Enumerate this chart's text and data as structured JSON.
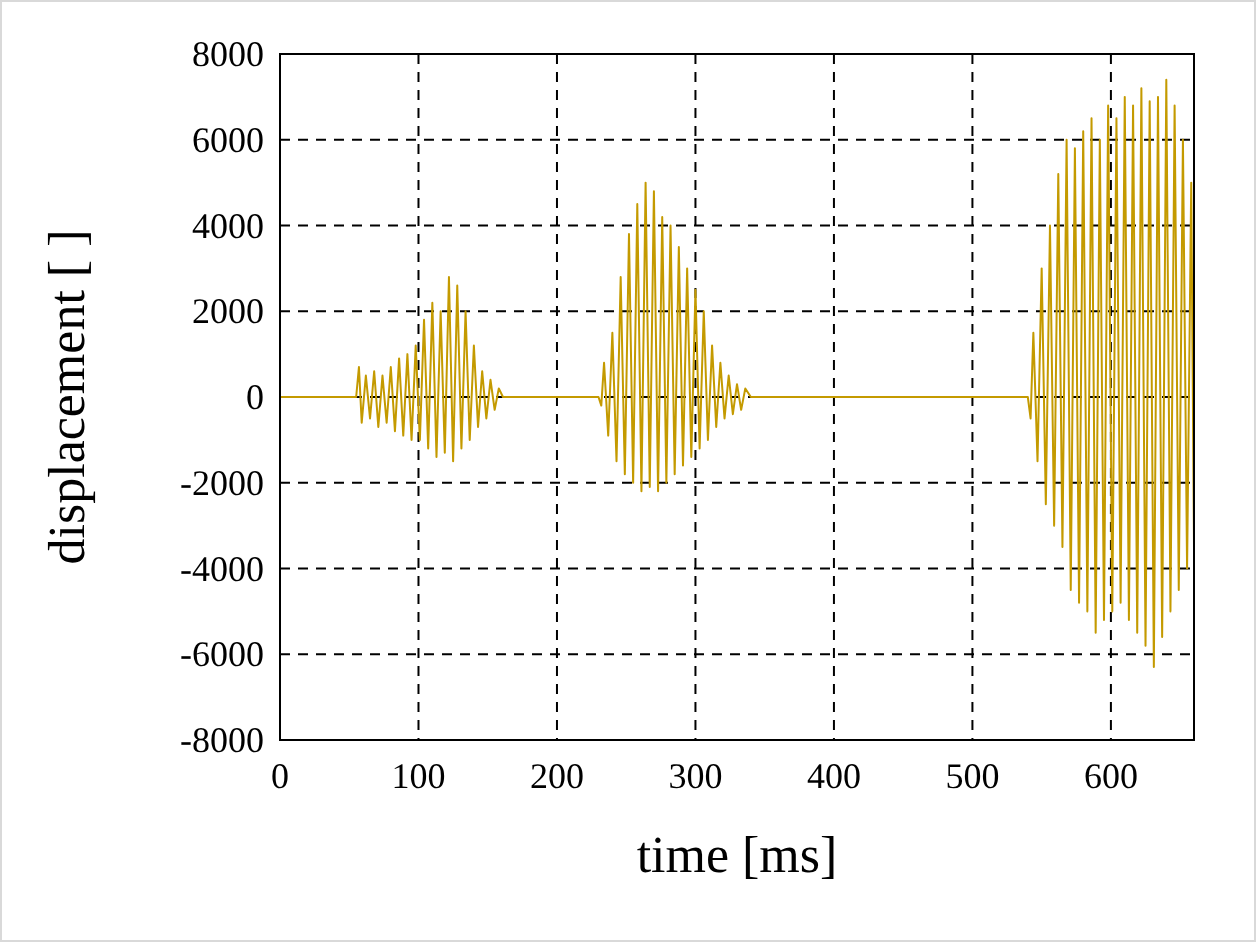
{
  "chart_data": {
    "type": "line",
    "xlabel": "time [ms]",
    "ylabel": "displacement [ ]",
    "xlim": [
      0,
      660
    ],
    "xticks": [
      0,
      100,
      200,
      300,
      400,
      500,
      600
    ],
    "ylim": [
      -8000,
      8000
    ],
    "yticks": [
      -8000,
      -6000,
      -4000,
      -2000,
      0,
      2000,
      4000,
      6000,
      8000
    ],
    "grid": true,
    "marker": "none",
    "line_style": "solid",
    "series": [
      {
        "color": "#c49a00",
        "x": [
          0,
          55,
          57,
          59,
          62,
          65,
          68,
          71,
          74,
          77,
          80,
          83,
          86,
          89,
          92,
          95,
          98,
          101,
          104,
          107,
          110,
          113,
          116,
          119,
          122,
          125,
          128,
          131,
          134,
          137,
          140,
          143,
          146,
          149,
          152,
          155,
          158,
          161,
          230,
          232,
          234,
          237,
          240,
          243,
          246,
          249,
          252,
          255,
          258,
          261,
          264,
          267,
          270,
          273,
          276,
          279,
          282,
          285,
          288,
          291,
          294,
          297,
          300,
          303,
          306,
          309,
          312,
          315,
          318,
          321,
          324,
          327,
          330,
          333,
          336,
          340,
          540,
          542,
          544,
          547,
          550,
          553,
          556,
          559,
          562,
          565,
          568,
          571,
          574,
          577,
          580,
          583,
          586,
          589,
          592,
          595,
          598,
          601,
          604,
          607,
          610,
          613,
          616,
          619,
          622,
          625,
          628,
          631,
          634,
          637,
          640,
          643,
          646,
          649,
          652,
          655,
          658,
          660
        ],
        "values": [
          0,
          0,
          700,
          -600,
          500,
          -500,
          600,
          -700,
          500,
          -600,
          700,
          -800,
          900,
          -900,
          1000,
          -1000,
          1200,
          -1000,
          1800,
          -1200,
          2200,
          -1400,
          2000,
          -1300,
          2800,
          -1500,
          2600,
          -1200,
          2000,
          -1000,
          1200,
          -700,
          600,
          -500,
          400,
          -300,
          200,
          0,
          0,
          -200,
          800,
          -900,
          1500,
          -1500,
          2800,
          -1800,
          3800,
          -2000,
          4500,
          -2200,
          5000,
          -2100,
          4800,
          -2200,
          4200,
          -2000,
          4000,
          -1800,
          3500,
          -1600,
          3000,
          -1400,
          2500,
          -1200,
          2000,
          -1000,
          1200,
          -700,
          800,
          -500,
          500,
          -400,
          300,
          -300,
          200,
          0,
          0,
          -500,
          1500,
          -1500,
          3000,
          -2500,
          4000,
          -3000,
          5200,
          -3500,
          6000,
          -4500,
          5800,
          -4800,
          6200,
          -5000,
          6500,
          -5500,
          6000,
          -5200,
          6800,
          -5000,
          6500,
          -4800,
          7000,
          -5200,
          6800,
          -5500,
          7200,
          -5800,
          6900,
          -6300,
          7000,
          -5600,
          7400,
          -5000,
          6800,
          -4500,
          6000,
          -4000,
          5000,
          -3500
        ]
      }
    ]
  }
}
